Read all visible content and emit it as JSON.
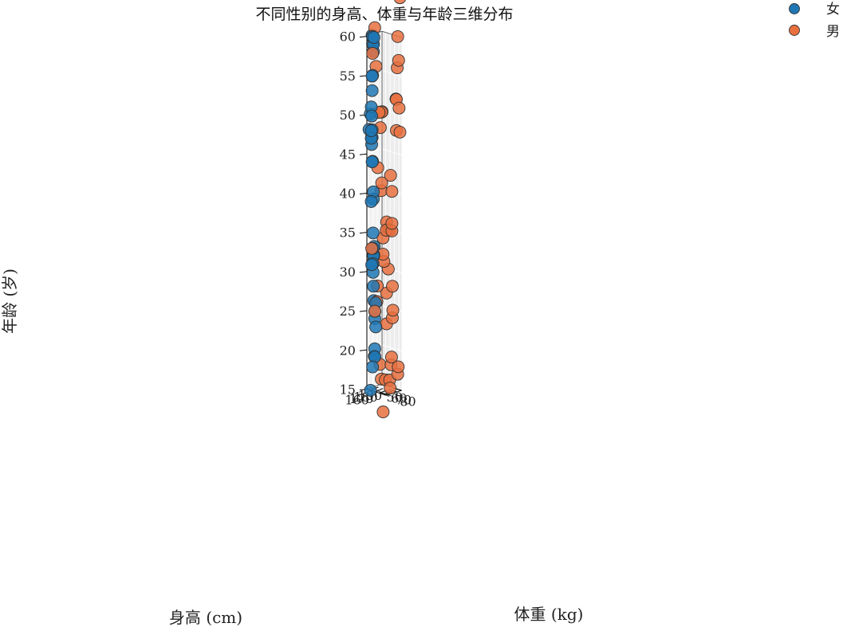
{
  "chart_data": {
    "type": "scatter",
    "title": "不同性别的身高、体重与年龄三维分布",
    "xlabel": "身高 (cm)",
    "ylabel": "体重 (kg)",
    "zlabel": "年龄 (岁)",
    "xlim": [
      156,
      191
    ],
    "ylim": [
      42,
      86
    ],
    "zlim": [
      15,
      60
    ],
    "x_ticks": [
      160,
      170,
      180,
      190
    ],
    "y_ticks": [
      50,
      60,
      70,
      80
    ],
    "z_ticks": [
      15,
      20,
      25,
      30,
      35,
      40,
      45,
      50,
      55,
      60
    ],
    "grid": true,
    "legend": {
      "position": "top-right"
    },
    "series": [
      {
        "name": "女",
        "color": "#1f77b4",
        "points": [
          [
            160,
            54,
            60
          ],
          [
            161,
            50,
            60
          ],
          [
            162,
            49,
            60
          ],
          [
            163,
            50,
            59
          ],
          [
            164,
            47,
            59
          ],
          [
            165,
            48,
            58
          ],
          [
            166,
            46,
            59
          ],
          [
            166,
            44,
            60
          ],
          [
            160,
            50,
            55
          ],
          [
            163,
            48,
            55
          ],
          [
            164,
            46,
            53
          ],
          [
            161,
            47,
            51
          ],
          [
            157,
            52,
            50
          ],
          [
            163,
            43,
            50
          ],
          [
            162,
            41,
            48
          ],
          [
            160,
            48,
            48
          ],
          [
            161,
            47,
            47
          ],
          [
            164,
            46,
            48
          ],
          [
            165,
            45,
            47
          ],
          [
            166,
            43,
            47
          ],
          [
            167,
            42,
            46
          ],
          [
            162,
            48,
            44
          ],
          [
            164,
            47,
            44
          ],
          [
            168,
            45,
            40
          ],
          [
            170,
            43,
            39
          ],
          [
            159,
            49,
            39
          ],
          [
            161,
            51,
            35
          ],
          [
            162,
            50,
            33
          ],
          [
            163,
            49,
            31
          ],
          [
            158,
            51,
            31
          ],
          [
            160,
            52,
            30
          ],
          [
            165,
            48,
            32
          ],
          [
            167,
            47,
            32
          ],
          [
            170,
            45,
            33
          ],
          [
            171,
            42,
            31
          ],
          [
            167,
            46,
            28
          ],
          [
            172,
            42,
            26
          ],
          [
            165,
            51,
            24
          ],
          [
            163,
            53,
            25
          ],
          [
            166,
            52,
            26
          ],
          [
            164,
            54,
            23
          ],
          [
            169,
            47,
            20
          ],
          [
            170,
            46,
            19
          ],
          [
            170,
            45,
            19
          ],
          [
            158,
            53,
            18
          ],
          [
            156,
            50,
            15
          ],
          [
            168,
            48,
            19
          ]
        ]
      },
      {
        "name": "男",
        "color": "#e8703f",
        "points": [
          [
            158,
            53,
            58
          ],
          [
            168,
            48,
            61
          ],
          [
            171,
            48,
            56
          ],
          [
            178,
            48,
            50
          ],
          [
            180,
            48,
            50
          ],
          [
            182,
            50,
            50
          ],
          [
            184,
            49,
            50
          ],
          [
            181,
            48,
            48
          ],
          [
            175,
            48,
            43
          ],
          [
            181,
            51,
            41
          ],
          [
            181,
            50,
            40
          ],
          [
            180,
            55,
            32
          ],
          [
            182,
            53,
            34
          ],
          [
            183,
            54,
            31
          ],
          [
            185,
            57,
            35
          ],
          [
            187,
            56,
            36
          ],
          [
            160,
            49,
            33
          ],
          [
            163,
            53,
            25
          ],
          [
            172,
            49,
            26
          ],
          [
            172,
            50,
            28
          ],
          [
            185,
            58,
            27
          ],
          [
            187,
            56,
            23
          ],
          [
            175,
            53,
            18
          ],
          [
            180,
            51,
            16
          ],
          [
            182,
            58,
            16
          ],
          [
            177,
            58,
            12
          ],
          [
            191,
            82,
            65
          ],
          [
            190,
            78,
            60
          ],
          [
            190,
            80,
            57
          ],
          [
            190,
            77,
            56
          ],
          [
            189,
            75,
            52
          ],
          [
            188,
            77,
            52
          ],
          [
            189,
            76,
            48
          ],
          [
            188,
            83,
            51
          ],
          [
            187,
            86,
            48
          ],
          [
            190,
            62,
            42
          ],
          [
            190,
            65,
            40
          ],
          [
            189,
            66,
            35
          ],
          [
            188,
            67,
            36
          ],
          [
            190,
            60,
            35
          ],
          [
            191,
            55,
            35
          ],
          [
            189,
            58,
            30
          ],
          [
            188,
            68,
            28
          ],
          [
            187,
            70,
            25
          ],
          [
            187,
            69,
            24
          ],
          [
            186,
            68,
            19
          ],
          [
            186,
            67,
            18
          ],
          [
            186,
            64,
            16
          ],
          [
            186,
            65,
            15
          ],
          [
            187,
            82,
            18
          ],
          [
            188,
            80,
            17
          ]
        ]
      }
    ]
  }
}
